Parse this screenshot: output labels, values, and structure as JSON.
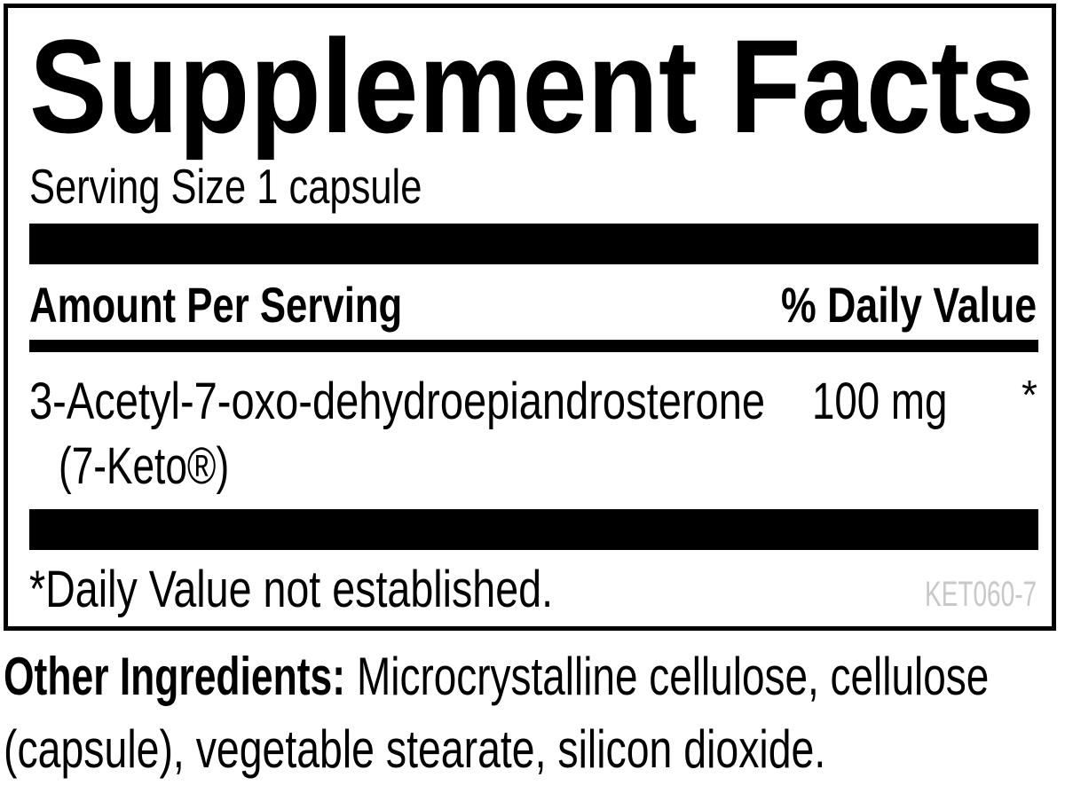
{
  "label": {
    "title": "Supplement Facts",
    "serving_size": "Serving Size 1 capsule",
    "header": {
      "amount": "Amount Per Serving",
      "daily_value": "% Daily Value"
    },
    "ingredients": [
      {
        "name": "3-Acetyl-7-oxo-dehydroepiandrosterone",
        "sub": "(7-Keto®)",
        "amount": "100 mg",
        "dv": "*"
      }
    ],
    "footnote": "*Daily Value not established.",
    "code": "KET060-7",
    "code_color": "#c8c8c8"
  },
  "other_ingredients": {
    "label": "Other Ingredients:",
    "line1": "Microcrystalline cellulose, cellulose",
    "line2": "(capsule), vegetable stearate, silicon dioxide."
  }
}
